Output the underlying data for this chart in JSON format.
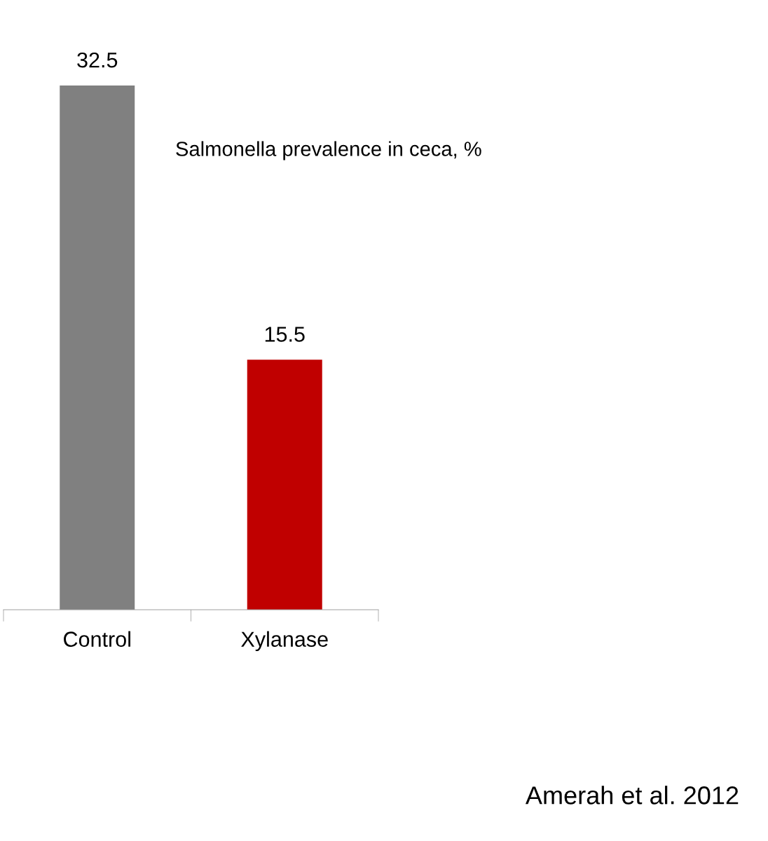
{
  "chart_data": {
    "type": "bar",
    "title": "Salmonella prevalence in ceca, %",
    "categories": [
      "Control",
      "Xylanase"
    ],
    "values": [
      32.5,
      15.5
    ],
    "colors": [
      "#808080",
      "#c00000"
    ],
    "data_labels": true,
    "annotations": [
      "Amerah et al. 2012"
    ]
  }
}
